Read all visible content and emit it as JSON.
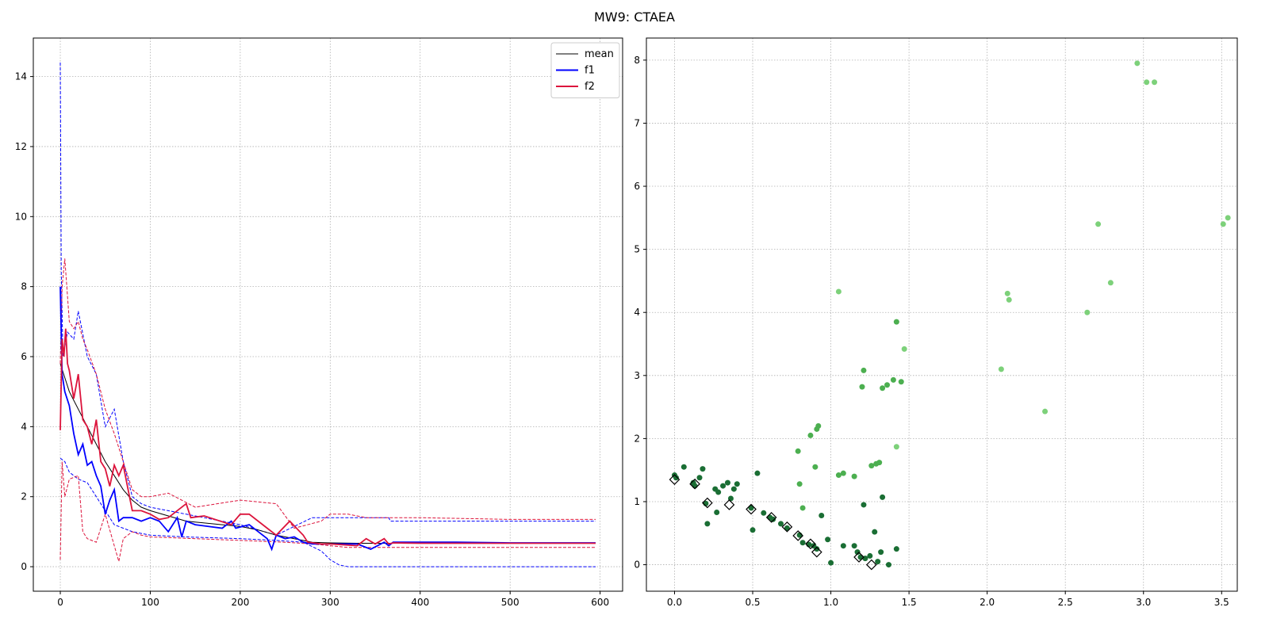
{
  "figure": {
    "title": "MW9: CTAEA"
  },
  "chart_data": [
    {
      "type": "line",
      "title": "",
      "xlabel": "",
      "ylabel": "",
      "xlim": [
        -30,
        625
      ],
      "ylim": [
        -0.7,
        15.1
      ],
      "xticks": [
        0,
        100,
        200,
        300,
        400,
        500,
        600
      ],
      "yticks": [
        0,
        2,
        4,
        6,
        8,
        10,
        12,
        14
      ],
      "grid": true,
      "legend_position": "top-right",
      "series": [
        {
          "name": "mean",
          "color": "#000000",
          "style": "solid",
          "x": [
            0,
            5,
            10,
            20,
            30,
            40,
            50,
            60,
            70,
            80,
            90,
            100,
            120,
            140,
            160,
            180,
            200,
            220,
            240,
            260,
            280,
            300,
            330,
            360,
            400,
            450,
            500,
            595
          ],
          "y": [
            5.8,
            5.4,
            5.0,
            4.5,
            4.0,
            3.5,
            3.0,
            2.6,
            2.2,
            1.9,
            1.7,
            1.6,
            1.45,
            1.3,
            1.25,
            1.2,
            1.15,
            1.05,
            0.9,
            0.8,
            0.7,
            0.68,
            0.67,
            0.67,
            0.67,
            0.67,
            0.67,
            0.67
          ]
        },
        {
          "name": "f1",
          "color": "#0000ff",
          "style": "solid",
          "x": [
            0,
            2,
            5,
            10,
            15,
            20,
            25,
            30,
            35,
            40,
            45,
            50,
            55,
            60,
            65,
            70,
            80,
            90,
            100,
            110,
            120,
            130,
            135,
            140,
            150,
            180,
            190,
            195,
            210,
            230,
            235,
            240,
            250,
            260,
            270,
            280,
            300,
            330,
            345,
            360,
            365,
            370,
            400,
            440,
            500,
            595
          ],
          "y": [
            8.0,
            5.5,
            5.0,
            4.6,
            3.8,
            3.2,
            3.5,
            2.9,
            3.0,
            2.6,
            2.3,
            1.5,
            1.9,
            2.2,
            1.3,
            1.4,
            1.4,
            1.3,
            1.4,
            1.3,
            1.0,
            1.4,
            0.85,
            1.3,
            1.2,
            1.1,
            1.3,
            1.1,
            1.2,
            0.8,
            0.5,
            0.9,
            0.8,
            0.85,
            0.7,
            0.65,
            0.65,
            0.65,
            0.5,
            0.7,
            0.6,
            0.7,
            0.7,
            0.7,
            0.68,
            0.68
          ]
        },
        {
          "name": "f2",
          "color": "#dc143c",
          "style": "solid",
          "x": [
            0,
            2,
            4,
            6,
            8,
            10,
            15,
            20,
            25,
            30,
            35,
            40,
            45,
            50,
            55,
            60,
            65,
            70,
            80,
            90,
            100,
            110,
            120,
            140,
            145,
            160,
            190,
            200,
            210,
            230,
            240,
            255,
            270,
            275,
            290,
            300,
            330,
            340,
            350,
            360,
            365,
            370,
            400,
            450,
            500,
            595
          ],
          "y": [
            3.9,
            6.5,
            6.0,
            6.8,
            5.8,
            5.6,
            4.8,
            5.5,
            4.2,
            4.0,
            3.5,
            4.2,
            3.0,
            2.8,
            2.3,
            2.9,
            2.6,
            2.9,
            1.6,
            1.6,
            1.5,
            1.35,
            1.4,
            1.8,
            1.4,
            1.45,
            1.2,
            1.5,
            1.5,
            1.1,
            0.9,
            1.3,
            0.9,
            0.7,
            0.65,
            0.65,
            0.6,
            0.8,
            0.65,
            0.8,
            0.65,
            0.68,
            0.67,
            0.67,
            0.67,
            0.67
          ]
        },
        {
          "name": "",
          "color": "#0000ff",
          "style": "dashed",
          "x": [
            0,
            1,
            3,
            8,
            15,
            20,
            30,
            40,
            50,
            60,
            70,
            80,
            90,
            100,
            140,
            200,
            240,
            280,
            300,
            330,
            365,
            367,
            595
          ],
          "y": [
            14.4,
            8.5,
            6.0,
            6.7,
            6.5,
            7.3,
            6.0,
            5.5,
            4.0,
            4.5,
            3.0,
            2.0,
            1.8,
            1.7,
            1.5,
            1.2,
            0.9,
            1.4,
            1.4,
            1.4,
            1.4,
            1.3,
            1.3
          ]
        },
        {
          "name": "",
          "color": "#0000ff",
          "style": "dashed",
          "x": [
            0,
            5,
            10,
            20,
            30,
            40,
            50,
            60,
            70,
            80,
            90,
            100,
            140,
            200,
            240,
            270,
            290,
            300,
            310,
            320,
            595
          ],
          "y": [
            3.1,
            3.0,
            2.7,
            2.5,
            2.4,
            2.0,
            1.6,
            1.2,
            1.1,
            1.0,
            0.95,
            0.9,
            0.85,
            0.8,
            0.75,
            0.7,
            0.45,
            0.2,
            0.05,
            0.0,
            0.0
          ]
        },
        {
          "name": "",
          "color": "#dc143c",
          "style": "dashed",
          "x": [
            0,
            2,
            5,
            10,
            15,
            20,
            25,
            30,
            40,
            50,
            60,
            70,
            80,
            90,
            100,
            120,
            150,
            200,
            240,
            260,
            290,
            300,
            320,
            340,
            360,
            400,
            500,
            595
          ],
          "y": [
            5.8,
            8.0,
            8.8,
            7.0,
            6.8,
            7.0,
            6.5,
            6.2,
            5.5,
            4.5,
            3.8,
            3.0,
            2.2,
            2.0,
            2.0,
            2.1,
            1.7,
            1.9,
            1.8,
            1.1,
            1.3,
            1.5,
            1.5,
            1.4,
            1.4,
            1.4,
            1.35,
            1.35
          ]
        },
        {
          "name": "",
          "color": "#dc143c",
          "style": "dashed",
          "x": [
            0,
            2,
            5,
            10,
            20,
            25,
            30,
            40,
            50,
            60,
            65,
            70,
            80,
            90,
            100,
            150,
            200,
            250,
            280,
            300,
            320,
            360,
            400,
            500,
            595
          ],
          "y": [
            0.2,
            3.0,
            2.0,
            2.5,
            2.6,
            1.0,
            0.8,
            0.7,
            1.5,
            0.6,
            0.15,
            0.8,
            1.0,
            0.9,
            0.85,
            0.8,
            0.75,
            0.7,
            0.65,
            0.6,
            0.55,
            0.55,
            0.55,
            0.55,
            0.55
          ]
        }
      ]
    },
    {
      "type": "scatter",
      "title": "",
      "xlabel": "",
      "ylabel": "",
      "xlim": [
        -0.18,
        3.6
      ],
      "ylim": [
        -0.42,
        8.35
      ],
      "xticks": [
        0.0,
        0.5,
        1.0,
        1.5,
        2.0,
        2.5,
        3.0,
        3.5
      ],
      "yticks": [
        0,
        1,
        2,
        3,
        4,
        5,
        6,
        7,
        8
      ],
      "grid": true,
      "series": [
        {
          "name": "",
          "color": "#1a6e34",
          "points": [
            [
              0.0,
              1.42
            ],
            [
              0.01,
              1.38
            ],
            [
              0.06,
              1.55
            ],
            [
              0.12,
              1.3
            ],
            [
              0.13,
              1.25
            ],
            [
              0.16,
              1.38
            ],
            [
              0.18,
              1.52
            ],
            [
              0.2,
              0.97
            ],
            [
              0.21,
              0.65
            ],
            [
              0.26,
              1.2
            ],
            [
              0.27,
              0.83
            ],
            [
              0.28,
              1.15
            ],
            [
              0.31,
              1.25
            ],
            [
              0.34,
              1.3
            ],
            [
              0.36,
              1.05
            ],
            [
              0.38,
              1.2
            ],
            [
              0.4,
              1.28
            ],
            [
              0.49,
              0.9
            ],
            [
              0.5,
              0.55
            ],
            [
              0.53,
              1.45
            ],
            [
              0.57,
              0.82
            ],
            [
              0.61,
              0.75
            ],
            [
              0.63,
              0.72
            ],
            [
              0.68,
              0.65
            ],
            [
              0.72,
              0.58
            ],
            [
              0.8,
              0.47
            ],
            [
              0.82,
              0.35
            ],
            [
              0.86,
              0.32
            ],
            [
              0.89,
              0.3
            ],
            [
              0.91,
              0.25
            ],
            [
              0.94,
              0.78
            ],
            [
              0.98,
              0.4
            ],
            [
              1.0,
              0.03
            ],
            [
              1.08,
              0.3
            ],
            [
              1.15,
              0.3
            ],
            [
              1.17,
              0.2
            ],
            [
              1.19,
              0.12
            ],
            [
              1.21,
              0.95
            ],
            [
              1.22,
              0.1
            ],
            [
              1.25,
              0.14
            ],
            [
              1.28,
              0.52
            ],
            [
              1.3,
              0.05
            ],
            [
              1.32,
              0.2
            ],
            [
              1.33,
              1.07
            ],
            [
              1.37,
              0.0
            ],
            [
              1.42,
              0.25
            ]
          ]
        },
        {
          "name": "",
          "color": "#4caf50",
          "points": [
            [
              0.79,
              1.8
            ],
            [
              0.8,
              1.28
            ],
            [
              0.82,
              0.9
            ],
            [
              0.87,
              2.05
            ],
            [
              0.9,
              1.55
            ],
            [
              0.91,
              2.15
            ],
            [
              0.92,
              2.2
            ],
            [
              1.05,
              1.42
            ],
            [
              1.08,
              1.45
            ],
            [
              1.15,
              1.4
            ],
            [
              1.2,
              2.82
            ],
            [
              1.21,
              3.08
            ],
            [
              1.26,
              1.57
            ],
            [
              1.29,
              1.6
            ],
            [
              1.31,
              1.62
            ],
            [
              1.33,
              2.8
            ],
            [
              1.36,
              2.85
            ],
            [
              1.4,
              2.93
            ],
            [
              1.42,
              3.85
            ],
            [
              1.45,
              2.9
            ]
          ]
        },
        {
          "name": "",
          "color": "#7dd17a",
          "points": [
            [
              1.05,
              4.33
            ],
            [
              1.42,
              1.87
            ],
            [
              1.47,
              3.42
            ],
            [
              2.09,
              3.1
            ],
            [
              2.13,
              4.3
            ],
            [
              2.14,
              4.2
            ],
            [
              2.37,
              2.43
            ],
            [
              2.64,
              4.0
            ],
            [
              2.71,
              5.4
            ],
            [
              2.79,
              4.47
            ],
            [
              2.96,
              7.95
            ],
            [
              3.02,
              7.65
            ],
            [
              3.07,
              7.65
            ],
            [
              3.51,
              5.4
            ],
            [
              3.54,
              5.5
            ]
          ]
        },
        {
          "name": "",
          "color": "#000000",
          "marker": "diamond",
          "points": [
            [
              0.0,
              1.35
            ],
            [
              0.13,
              1.28
            ],
            [
              0.21,
              0.98
            ],
            [
              0.35,
              0.95
            ],
            [
              0.49,
              0.88
            ],
            [
              0.62,
              0.75
            ],
            [
              0.72,
              0.6
            ],
            [
              0.79,
              0.46
            ],
            [
              0.87,
              0.33
            ],
            [
              0.91,
              0.2
            ],
            [
              1.18,
              0.12
            ],
            [
              1.26,
              0.0
            ]
          ]
        }
      ]
    }
  ]
}
